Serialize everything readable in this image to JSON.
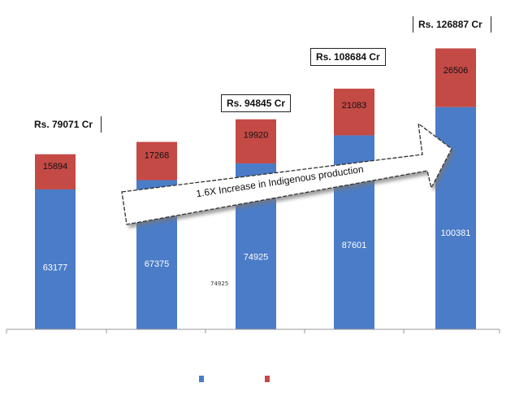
{
  "chart_data": {
    "type": "bar",
    "stacked": true,
    "categories": [
      "",
      "",
      "",
      "",
      ""
    ],
    "series": [
      {
        "name": "",
        "color": "#4a7cc7",
        "values": [
          63177,
          67375,
          74925,
          87601,
          100381
        ]
      },
      {
        "name": "",
        "color": "#c44a46",
        "values": [
          15894,
          17268,
          19920,
          21083,
          26506
        ]
      }
    ],
    "value_labels": [
      [
        "63177",
        "67375",
        "74925",
        "87601",
        "100381"
      ],
      [
        "15894",
        "17268",
        "19920",
        "21083",
        "26506"
      ]
    ],
    "totals": [
      "Rs. 79071 Cr",
      "",
      "Rs. 94845 Cr",
      "Rs. 108684 Cr",
      "Rs. 126887 Cr"
    ],
    "annotation": "1.6X Increase in Indigenous production",
    "small_note": "74925",
    "ylim": [
      0,
      130000
    ],
    "legend": "bottom-center"
  }
}
